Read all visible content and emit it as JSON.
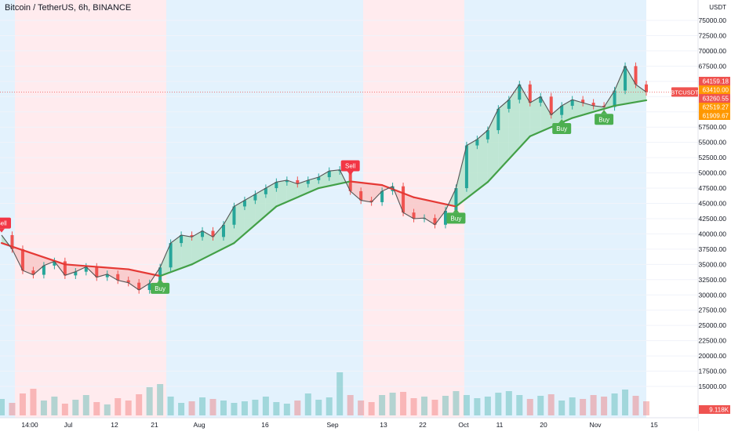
{
  "header": {
    "title": "Bitcoin / TetherUS, 6h, BINANCE"
  },
  "axis": {
    "unit_label": "USDT"
  },
  "chart_data": {
    "type": "line",
    "title": "Bitcoin / TetherUS, 6h, BINANCE",
    "symbol": "BTCUSDT",
    "timeframe": "6h",
    "exchange": "BINANCE",
    "y_axis": {
      "unit": "USDT",
      "ticks": [
        "75000.00",
        "72500.00",
        "70000.00",
        "67500.00",
        "65000.00",
        "62500.00",
        "60000.00",
        "57500.00",
        "55000.00",
        "52500.00",
        "50000.00",
        "47500.00",
        "45000.00",
        "42500.00",
        "40000.00",
        "37500.00",
        "35000.00",
        "32500.00",
        "30000.00",
        "27500.00",
        "25000.00",
        "22500.00",
        "20000.00",
        "17500.00",
        "15000.00"
      ]
    },
    "x_axis": {
      "ticks": [
        "14:00",
        "Jul",
        "12",
        "21",
        "Aug",
        "16",
        "Sep",
        "13",
        "22",
        "Oct",
        "11",
        "20",
        "Nov",
        "15"
      ]
    },
    "grid": true,
    "background_regimes": [
      {
        "state": "bullish",
        "color": "#e3f2fd"
      },
      {
        "state": "bearish",
        "color": "#ffebee"
      },
      {
        "state": "bullish",
        "color": "#e3f2fd"
      },
      {
        "state": "bearish",
        "color": "#ffebee"
      },
      {
        "state": "bullish",
        "color": "#e3f2fd"
      }
    ],
    "price_series": [
      {
        "x": 0,
        "y": 39800
      },
      {
        "x": 1,
        "y": 37500
      },
      {
        "x": 2,
        "y": 34000
      },
      {
        "x": 3,
        "y": 33300
      },
      {
        "x": 4,
        "y": 34800
      },
      {
        "x": 5,
        "y": 35500
      },
      {
        "x": 6,
        "y": 33200
      },
      {
        "x": 7,
        "y": 33800
      },
      {
        "x": 8,
        "y": 34600
      },
      {
        "x": 9,
        "y": 32900
      },
      {
        "x": 10,
        "y": 33400
      },
      {
        "x": 11,
        "y": 32400
      },
      {
        "x": 12,
        "y": 32000
      },
      {
        "x": 13,
        "y": 30800
      },
      {
        "x": 14,
        "y": 31900
      },
      {
        "x": 15,
        "y": 34500
      },
      {
        "x": 16,
        "y": 38500
      },
      {
        "x": 17,
        "y": 39800
      },
      {
        "x": 18,
        "y": 39500
      },
      {
        "x": 19,
        "y": 40500
      },
      {
        "x": 20,
        "y": 39500
      },
      {
        "x": 21,
        "y": 41500
      },
      {
        "x": 22,
        "y": 44500
      },
      {
        "x": 23,
        "y": 45500
      },
      {
        "x": 24,
        "y": 46500
      },
      {
        "x": 25,
        "y": 47500
      },
      {
        "x": 26,
        "y": 48500
      },
      {
        "x": 27,
        "y": 48800
      },
      {
        "x": 28,
        "y": 48200
      },
      {
        "x": 29,
        "y": 48800
      },
      {
        "x": 30,
        "y": 49300
      },
      {
        "x": 31,
        "y": 50300
      },
      {
        "x": 32,
        "y": 50500
      },
      {
        "x": 33,
        "y": 47000
      },
      {
        "x": 34,
        "y": 45500
      },
      {
        "x": 35,
        "y": 45200
      },
      {
        "x": 36,
        "y": 47000
      },
      {
        "x": 37,
        "y": 47800
      },
      {
        "x": 38,
        "y": 43500
      },
      {
        "x": 39,
        "y": 42500
      },
      {
        "x": 40,
        "y": 42600
      },
      {
        "x": 41,
        "y": 41500
      },
      {
        "x": 42,
        "y": 43800
      },
      {
        "x": 43,
        "y": 47500
      },
      {
        "x": 44,
        "y": 54500
      },
      {
        "x": 45,
        "y": 55500
      },
      {
        "x": 46,
        "y": 57000
      },
      {
        "x": 47,
        "y": 60500
      },
      {
        "x": 48,
        "y": 62000
      },
      {
        "x": 49,
        "y": 64500
      },
      {
        "x": 50,
        "y": 61500
      },
      {
        "x": 51,
        "y": 62500
      },
      {
        "x": 52,
        "y": 59500
      },
      {
        "x": 53,
        "y": 61000
      },
      {
        "x": 54,
        "y": 62000
      },
      {
        "x": 55,
        "y": 61500
      },
      {
        "x": 56,
        "y": 61000
      },
      {
        "x": 57,
        "y": 60800
      },
      {
        "x": 58,
        "y": 63500
      },
      {
        "x": 59,
        "y": 67500
      },
      {
        "x": 60,
        "y": 64500
      },
      {
        "x": 61,
        "y": 63260
      }
    ],
    "moving_average_series": [
      {
        "x": 0,
        "y": 38500
      },
      {
        "x": 6,
        "y": 35000
      },
      {
        "x": 12,
        "y": 34200
      },
      {
        "x": 15,
        "y": 33100
      },
      {
        "x": 18,
        "y": 35000
      },
      {
        "x": 22,
        "y": 38500
      },
      {
        "x": 26,
        "y": 44500
      },
      {
        "x": 30,
        "y": 47500
      },
      {
        "x": 33,
        "y": 48600
      },
      {
        "x": 36,
        "y": 48000
      },
      {
        "x": 39,
        "y": 46000
      },
      {
        "x": 43,
        "y": 44500
      },
      {
        "x": 46,
        "y": 48500
      },
      {
        "x": 50,
        "y": 56000
      },
      {
        "x": 54,
        "y": 59000
      },
      {
        "x": 58,
        "y": 61000
      },
      {
        "x": 61,
        "y": 61900
      }
    ],
    "signals": [
      {
        "label": "Sell",
        "type": "sell",
        "x": 0,
        "y": 40100
      },
      {
        "label": "Buy",
        "type": "buy",
        "x": 15,
        "y": 33000
      },
      {
        "label": "Sell",
        "type": "sell",
        "x": 33,
        "y": 49500
      },
      {
        "label": "Buy",
        "type": "buy",
        "x": 43,
        "y": 44500
      },
      {
        "label": "Buy",
        "type": "buy",
        "x": 53,
        "y": 59200
      },
      {
        "label": "Buy",
        "type": "buy",
        "x": 57,
        "y": 60700
      }
    ],
    "price_labels": [
      {
        "value": "64159.18",
        "color": "#ef5350"
      },
      {
        "value": "63410.00",
        "color": "#ff9800"
      },
      {
        "value": "63260.55",
        "color": "#ef5350"
      },
      {
        "value": "62519.27",
        "color": "#ff9800"
      },
      {
        "value": "61909.67",
        "color": "#ff9800"
      }
    ],
    "symbol_tag": "BTCUSDT",
    "volume": {
      "label": "9.118K",
      "bars": [
        2.1,
        1.6,
        2.8,
        3.4,
        1.9,
        2.4,
        1.5,
        2.0,
        2.6,
        1.7,
        1.4,
        2.2,
        1.9,
        2.7,
        3.6,
        4.0,
        2.4,
        1.6,
        1.8,
        2.3,
        2.1,
        1.9,
        1.6,
        1.8,
        2.0,
        2.4,
        1.7,
        1.5,
        1.9,
        2.8,
        2.0,
        2.3,
        5.5,
        2.6,
        1.9,
        1.7,
        2.6,
        2.9,
        3.0,
        2.2,
        2.4,
        2.0,
        2.5,
        3.1,
        2.6,
        2.2,
        2.4,
        2.9,
        3.1,
        2.6,
        2.1,
        2.5,
        2.7,
        1.9,
        2.3,
        2.1,
        2.6,
        2.4,
        2.8,
        3.3,
        2.5,
        1.8
      ]
    },
    "colors": {
      "bull": "#26a69a",
      "bear": "#ef5350",
      "ma_green": "#43a047",
      "ma_red": "#e53935",
      "line": "#555555",
      "fill_green": "#b9e4cc",
      "fill_red": "#f8c8c8",
      "sell_tag": "#f23645",
      "buy_tag": "#4caf50"
    }
  }
}
